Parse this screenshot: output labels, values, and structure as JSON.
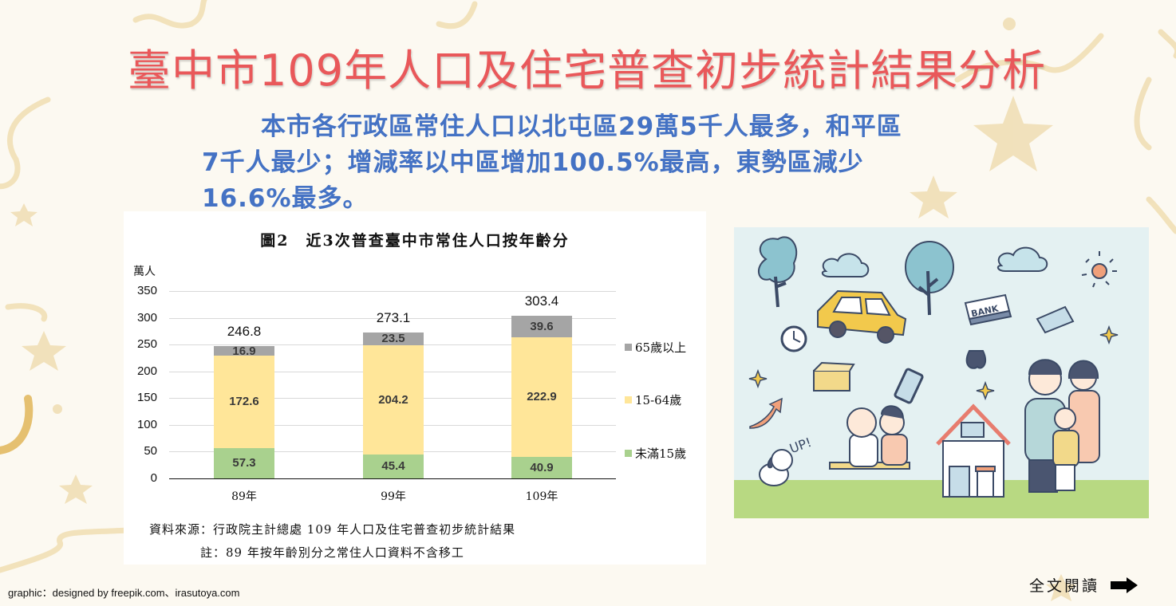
{
  "slide": {
    "title": "臺中市109年人口及住宅普查初步統計結果分析",
    "summary_lines": [
      "本市各行政區常住人口以北屯區29萬5千人最多，和平區",
      "7千人最少；增減率以中區增加100.5%最高，東勢區減少",
      "16.6%最多。"
    ],
    "colors": {
      "title": "#e9585a",
      "summary": "#4472c4",
      "background": "#fcf9f1",
      "decor": "#edd7a5"
    }
  },
  "chart_panel": {
    "title": "圖2　近3次普查臺中市常住人口按年齡分",
    "y_unit": "萬人",
    "source": "資料來源：行政院主計總處 109 年人口及住宅普查初步統計結果",
    "note": "註：89 年按年齡別分之常住人口資料不含移工"
  },
  "chart_data": {
    "type": "bar",
    "stacked": true,
    "title": "圖2 近3次普查臺中市常住人口按年齡分",
    "xlabel": "",
    "ylabel": "萬人",
    "ylim": [
      0,
      350
    ],
    "yticks": [
      0,
      50,
      100,
      150,
      200,
      250,
      300,
      350
    ],
    "grid": true,
    "legend_position": "right",
    "categories": [
      "89年",
      "99年",
      "109年"
    ],
    "series": [
      {
        "name": "未滿15歲",
        "color": "#a9d18e",
        "values": [
          57.3,
          45.4,
          40.9
        ]
      },
      {
        "name": "15-64歲",
        "color": "#ffe699",
        "values": [
          172.6,
          204.2,
          222.9
        ]
      },
      {
        "name": "65歲以上",
        "color": "#a5a5a5",
        "values": [
          16.9,
          23.5,
          39.6
        ]
      }
    ],
    "totals": [
      246.8,
      273.1,
      303.4
    ],
    "legend": [
      "65歲以上",
      "15-64歲",
      "未滿15歲"
    ]
  },
  "illustration": {
    "description": "family-house-city-life-illustration",
    "sign_text": "BANK",
    "speech_text": "UP!"
  },
  "footer": {
    "credit": "graphic：designed by freepik.com、irasutoya.com",
    "read_more_label": "全文閱讀",
    "read_more_icon": "right-arrow-icon"
  }
}
